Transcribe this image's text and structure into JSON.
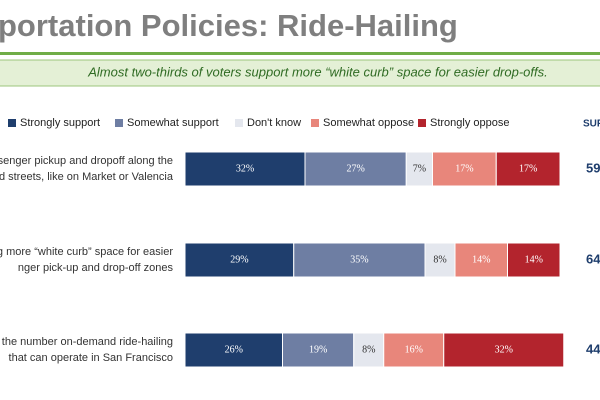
{
  "chart_data": {
    "type": "stacked_barh",
    "title": "portation Policies: Ride-Hailing",
    "subtitle": "Almost two-thirds of voters support more “white curb” space for easier drop-offs.",
    "categories": [
      [
        "senger pickup and dropoff along the",
        "ed streets, like on Market or Valencia"
      ],
      [
        "g more “white curb” space for easier",
        "nger pick-up and drop-off zones"
      ],
      [
        "the number on-demand ride-hailing",
        "that can operate in San Francisco"
      ]
    ],
    "xlim": [
      0,
      100
    ],
    "series": [
      {
        "name": "Strongly support",
        "color": "#1f3e6d",
        "values": [
          32,
          29,
          26
        ],
        "value_labels": [
          "32%",
          "29%",
          "26%"
        ]
      },
      {
        "name": "Somewhat support",
        "color": "#6e7ea3",
        "values": [
          27,
          35,
          19
        ],
        "value_labels": [
          "27%",
          "35%",
          "19%"
        ]
      },
      {
        "name": "Don't know",
        "color": "#e4e7ee",
        "values": [
          7,
          8,
          8
        ],
        "value_labels": [
          "7%",
          "8%",
          "8%"
        ]
      },
      {
        "name": "Somewhat oppose",
        "color": "#e8867b",
        "values": [
          17,
          14,
          16
        ],
        "value_labels": [
          "17%",
          "14%",
          "16%"
        ]
      },
      {
        "name": "Strongly oppose",
        "color": "#b3242d",
        "values": [
          17,
          14,
          32
        ],
        "value_labels": [
          "17%",
          "14%",
          "32%"
        ]
      }
    ],
    "side_column": {
      "header": "SUP",
      "values": [
        59,
        64,
        44
      ]
    }
  }
}
